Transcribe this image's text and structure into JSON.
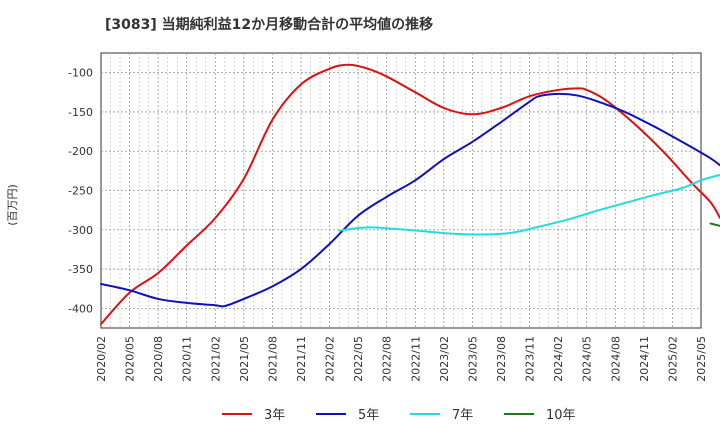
{
  "chart_data": {
    "type": "line",
    "title": "[3083]  当期純利益12か月移動合計の平均値の推移",
    "xlabel": "",
    "ylabel": "(百万円)",
    "ylim": [
      -425,
      -75
    ],
    "grid": true,
    "legend_position": "bottom-center",
    "x_ticks": [
      "2020/02",
      "2020/05",
      "2020/08",
      "2020/11",
      "2021/02",
      "2021/05",
      "2021/08",
      "2021/11",
      "2022/02",
      "2022/05",
      "2022/08",
      "2022/11",
      "2023/02",
      "2023/05",
      "2023/08",
      "2023/11",
      "2024/02",
      "2024/05",
      "2024/08",
      "2024/11",
      "2025/02",
      "2025/05"
    ],
    "y_ticks": [
      -100,
      -150,
      -200,
      -250,
      -300,
      -350,
      -400
    ],
    "y_tick_labels": [
      "-100",
      "-150",
      "-200",
      "-250",
      "-300",
      "-350",
      "-400"
    ],
    "series": [
      {
        "name": "3年",
        "color": "#dd1111",
        "points": [
          [
            0,
            -420
          ],
          [
            3,
            -380
          ],
          [
            6,
            -355
          ],
          [
            9,
            -320
          ],
          [
            12,
            -285
          ],
          [
            15,
            -235
          ],
          [
            18,
            -160
          ],
          [
            21,
            -115
          ],
          [
            24,
            -95
          ],
          [
            26,
            -90
          ],
          [
            28,
            -95
          ],
          [
            30,
            -105
          ],
          [
            33,
            -125
          ],
          [
            36,
            -145
          ],
          [
            39,
            -153
          ],
          [
            42,
            -145
          ],
          [
            45,
            -130
          ],
          [
            48,
            -122
          ],
          [
            50,
            -120
          ],
          [
            51,
            -122
          ],
          [
            53,
            -135
          ],
          [
            56,
            -165
          ],
          [
            59,
            -200
          ],
          [
            62,
            -240
          ],
          [
            64,
            -265
          ],
          [
            65,
            -285
          ]
        ]
      },
      {
        "name": "5年",
        "color": "#1111bb",
        "points": [
          [
            0,
            -369
          ],
          [
            3,
            -377
          ],
          [
            6,
            -388
          ],
          [
            9,
            -393
          ],
          [
            12,
            -396
          ],
          [
            13,
            -397
          ],
          [
            15,
            -388
          ],
          [
            18,
            -372
          ],
          [
            21,
            -350
          ],
          [
            24,
            -318
          ],
          [
            27,
            -282
          ],
          [
            30,
            -258
          ],
          [
            33,
            -237
          ],
          [
            36,
            -210
          ],
          [
            39,
            -188
          ],
          [
            42,
            -163
          ],
          [
            45,
            -137
          ],
          [
            46,
            -130
          ],
          [
            48,
            -127
          ],
          [
            50,
            -129
          ],
          [
            52,
            -136
          ],
          [
            55,
            -150
          ],
          [
            58,
            -168
          ],
          [
            61,
            -188
          ],
          [
            64,
            -209
          ],
          [
            65,
            -218
          ]
        ]
      },
      {
        "name": "7年",
        "color": "#22dddd",
        "points": [
          [
            25,
            -301
          ],
          [
            28,
            -297
          ],
          [
            31,
            -299
          ],
          [
            34,
            -302
          ],
          [
            37,
            -305
          ],
          [
            40,
            -306
          ],
          [
            43,
            -304
          ],
          [
            46,
            -296
          ],
          [
            49,
            -287
          ],
          [
            52,
            -276
          ],
          [
            55,
            -266
          ],
          [
            58,
            -256
          ],
          [
            61,
            -247
          ],
          [
            63,
            -237
          ],
          [
            65,
            -230
          ]
        ]
      },
      {
        "name": "10年",
        "color": "#227722",
        "points": [
          [
            64,
            -292
          ],
          [
            65,
            -295
          ]
        ]
      }
    ]
  }
}
